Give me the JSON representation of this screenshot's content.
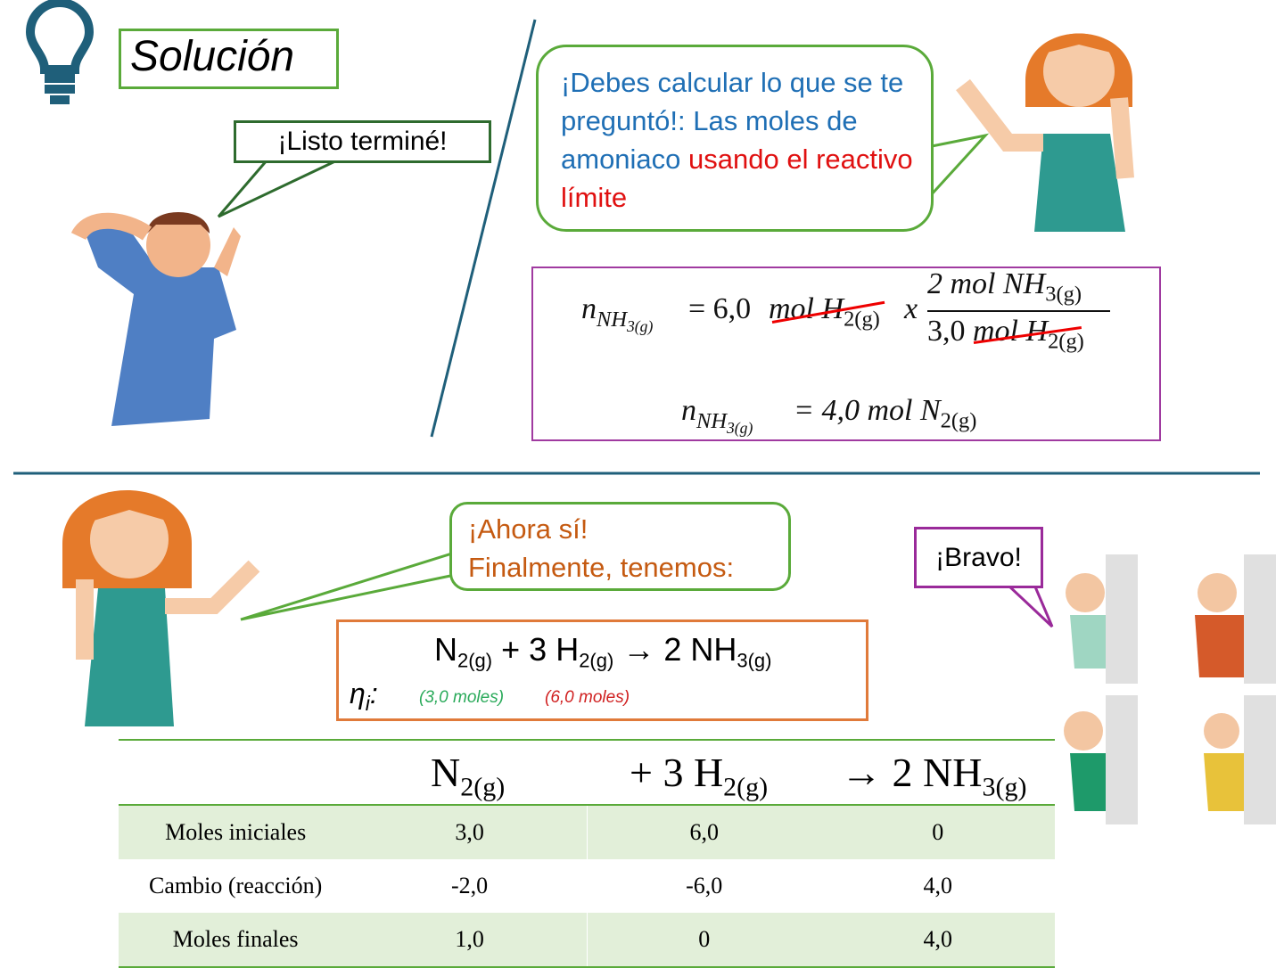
{
  "header": {
    "title": "Solución"
  },
  "bubbles": {
    "boy": "¡Listo terminé!",
    "hint": {
      "blue": "¡Debes calcular lo que se te preguntó!: Las moles de amoniaco",
      "red": "usando el reactivo límite"
    },
    "now": {
      "line1": "¡Ahora sí!",
      "line2": "Finalmente, tenemos:"
    },
    "bravo": "¡Bravo!"
  },
  "calculation": {
    "line1": {
      "n": "n",
      "n_sub": "NH",
      "n_subsub": "3(g)",
      "equals": "= 6,0",
      "unit": "mol H",
      "unit_sub": "2(g)",
      "times": "x",
      "numerator": "2 mol NH",
      "numerator_sub": "3(g)",
      "denominator_value": "3,0",
      "denominator_unit": "mol H",
      "denominator_sub": "2(g)"
    },
    "line2": {
      "n": "n",
      "n_sub": "NH",
      "n_subsub": "3(g)",
      "equals": "= 4,0 mol N",
      "unit_sub": "2(g)"
    }
  },
  "reaction": {
    "terms": [
      {
        "base": "N",
        "sub": "2(g)"
      },
      {
        "base": "+ 3 H",
        "sub": "2(g)"
      },
      {
        "base": "→ 2 NH",
        "sub": "3(g)"
      }
    ],
    "eta": "η",
    "eta_sub": "i",
    "eta_colon": ":",
    "n2_moles": "(3,0 moles)",
    "h2_moles": "(6,0 moles)"
  },
  "table": {
    "header": [
      {
        "base": "N",
        "sub": "2(g)"
      },
      {
        "base": "+ 3 H",
        "sub": "2(g)"
      },
      {
        "base": "→ 2 NH",
        "sub": "3(g)"
      }
    ],
    "rows": [
      [
        "Moles iniciales",
        "3,0",
        "6,0",
        "0"
      ],
      [
        "Cambio (reacción)",
        "-2,0",
        "-6,0",
        "4,0"
      ],
      [
        "Moles finales",
        "1,0",
        "0",
        "4,0"
      ]
    ]
  }
}
